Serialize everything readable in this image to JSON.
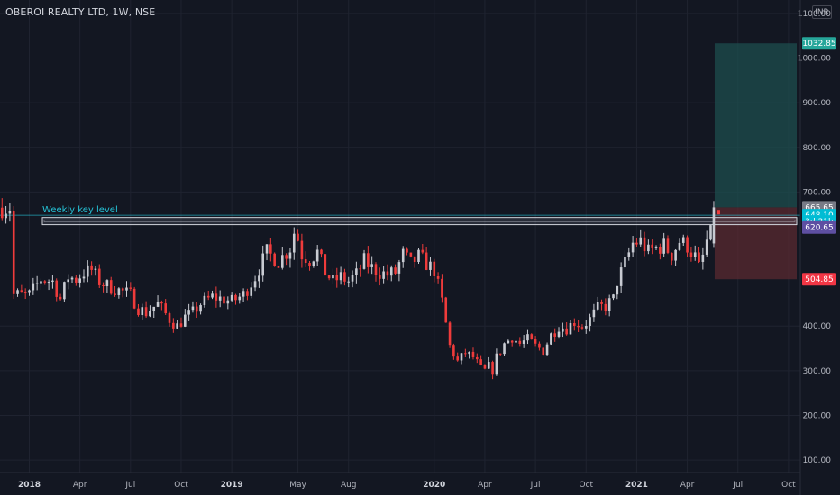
{
  "header": {
    "symbol_title": "OBEROI REALTY LTD, 1W, NSE",
    "currency": "INR"
  },
  "colors": {
    "background": "#131722",
    "up": "#c8cbd2",
    "down": "#ef3b3b",
    "grid": "#1f2330",
    "target_zone": "#1e4d4d",
    "stop_zone": "#5a2a30",
    "key_level_line": "#26c6da",
    "key_level_box": "#d1d4dc"
  },
  "chart_data": {
    "type": "candlestick",
    "title": "OBEROI REALTY LTD, 1W, NSE",
    "interval": "1W",
    "y_ticks": [
      "1100.00",
      "1000.00",
      "900.00",
      "800.00",
      "700.00",
      "400.00",
      "300.00",
      "200.00",
      "100.00"
    ],
    "ylim": [
      72,
      1130
    ],
    "x_ticks": [
      {
        "label": "2018",
        "bold": true,
        "w": 0
      },
      {
        "label": "Apr",
        "bold": false,
        "w": 13
      },
      {
        "label": "Jul",
        "bold": false,
        "w": 26
      },
      {
        "label": "Oct",
        "bold": false,
        "w": 39
      },
      {
        "label": "2019",
        "bold": true,
        "w": 52
      },
      {
        "label": "May",
        "bold": false,
        "w": 69
      },
      {
        "label": "Aug",
        "bold": false,
        "w": 82
      },
      {
        "label": "2020",
        "bold": true,
        "w": 104
      },
      {
        "label": "Apr",
        "bold": false,
        "w": 117
      },
      {
        "label": "Jul",
        "bold": false,
        "w": 130
      },
      {
        "label": "Oct",
        "bold": false,
        "w": 143
      },
      {
        "label": "2021",
        "bold": true,
        "w": 156
      },
      {
        "label": "Apr",
        "bold": false,
        "w": 169
      },
      {
        "label": "Jul",
        "bold": false,
        "w": 182
      },
      {
        "label": "Oct",
        "bold": false,
        "w": 195
      }
    ],
    "price_anchors": [
      [
        -4,
        470
      ],
      [
        0,
        470
      ],
      [
        3,
        505
      ],
      [
        6,
        500
      ],
      [
        8,
        460
      ],
      [
        10,
        510
      ],
      [
        12,
        505
      ],
      [
        14,
        520
      ],
      [
        16,
        525
      ],
      [
        18,
        500
      ],
      [
        20,
        490
      ],
      [
        23,
        480
      ],
      [
        26,
        470
      ],
      [
        28,
        440
      ],
      [
        30,
        430
      ],
      [
        33,
        450
      ],
      [
        36,
        415
      ],
      [
        38,
        400
      ],
      [
        40,
        420
      ],
      [
        42,
        430
      ],
      [
        44,
        450
      ],
      [
        47,
        465
      ],
      [
        50,
        460
      ],
      [
        52,
        455
      ],
      [
        55,
        470
      ],
      [
        58,
        510
      ],
      [
        61,
        565
      ],
      [
        64,
        545
      ],
      [
        67,
        575
      ],
      [
        68,
        610
      ],
      [
        69,
        595
      ],
      [
        70,
        560
      ],
      [
        72,
        550
      ],
      [
        74,
        565
      ],
      [
        76,
        520
      ],
      [
        78,
        500
      ],
      [
        80,
        510
      ],
      [
        82,
        500
      ],
      [
        84,
        515
      ],
      [
        86,
        545
      ],
      [
        88,
        530
      ],
      [
        90,
        520
      ],
      [
        92,
        515
      ],
      [
        94,
        520
      ],
      [
        96,
        560
      ],
      [
        98,
        540
      ],
      [
        100,
        555
      ],
      [
        102,
        540
      ],
      [
        104,
        525
      ],
      [
        106,
        455
      ],
      [
        108,
        355
      ],
      [
        110,
        320
      ],
      [
        112,
        340
      ],
      [
        114,
        330
      ],
      [
        116,
        305
      ],
      [
        117,
        300
      ],
      [
        118,
        310
      ],
      [
        119,
        300
      ],
      [
        120,
        330
      ],
      [
        122,
        360
      ],
      [
        124,
        375
      ],
      [
        126,
        360
      ],
      [
        128,
        370
      ],
      [
        130,
        355
      ],
      [
        132,
        345
      ],
      [
        134,
        380
      ],
      [
        136,
        400
      ],
      [
        138,
        395
      ],
      [
        140,
        410
      ],
      [
        142,
        400
      ],
      [
        144,
        415
      ],
      [
        146,
        440
      ],
      [
        148,
        445
      ],
      [
        150,
        460
      ],
      [
        151,
        500
      ],
      [
        153,
        540
      ],
      [
        155,
        585
      ],
      [
        157,
        590
      ],
      [
        159,
        565
      ],
      [
        161,
        575
      ],
      [
        163,
        580
      ],
      [
        165,
        560
      ],
      [
        167,
        590
      ],
      [
        169,
        580
      ],
      [
        171,
        555
      ],
      [
        172,
        530
      ],
      [
        173,
        555
      ],
      [
        174,
        590
      ],
      [
        175,
        605
      ],
      [
        175.8,
        665
      ]
    ],
    "annotations": {
      "key_level_label": "Weekly key level",
      "key_level_price": 648.1,
      "key_level_box": [
        627,
        643
      ],
      "target_price": 1032.85,
      "entry_price": 665.65,
      "stop_price": 504.85
    },
    "price_tags": [
      {
        "label": "1032.85",
        "value": 1032.85,
        "color": "#26a69a"
      },
      {
        "label": "665.65",
        "value": 665.65,
        "color": "#787b86"
      },
      {
        "label": "648.10",
        "value": 648.1,
        "color": "#00bcd4"
      },
      {
        "label": "3d 21h",
        "value": 634.0,
        "color": "#00bcd4"
      },
      {
        "label": "620.65",
        "value": 620.65,
        "color": "#5e4fa2"
      },
      {
        "label": "504.85",
        "value": 504.85,
        "color": "#f23645"
      }
    ]
  }
}
